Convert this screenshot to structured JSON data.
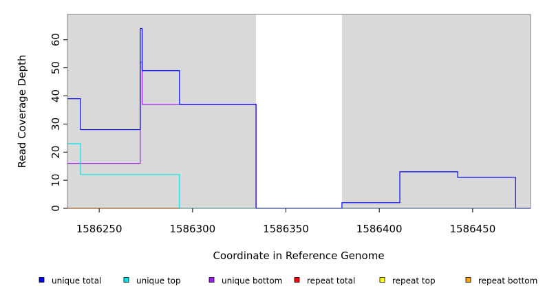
{
  "chart_data": {
    "type": "line",
    "step": true,
    "xlabel": "Coordinate in Reference Genome",
    "ylabel": "Read Coverage Depth",
    "xlim": [
      1586233,
      1586481
    ],
    "ylim": [
      0,
      69
    ],
    "x_ticks": [
      1586250,
      1586300,
      1586350,
      1586400,
      1586450
    ],
    "y_ticks": [
      0,
      10,
      20,
      30,
      40,
      50,
      60
    ],
    "background_color": "#d9d9d9",
    "uncovered_regions": [
      [
        1586334,
        1586380
      ]
    ],
    "grid": false,
    "legend_position": "bottom",
    "series": [
      {
        "name": "unique total",
        "color": "#0000ff",
        "points": [
          [
            1586233,
            39
          ],
          [
            1586240,
            39
          ],
          [
            1586240,
            28
          ],
          [
            1586272,
            28
          ],
          [
            1586272,
            64
          ],
          [
            1586273,
            64
          ],
          [
            1586273,
            49
          ],
          [
            1586293,
            49
          ],
          [
            1586293,
            37
          ],
          [
            1586334,
            37
          ],
          [
            1586334,
            0
          ],
          [
            1586380,
            0
          ],
          [
            1586380,
            2
          ],
          [
            1586411,
            2
          ],
          [
            1586411,
            13
          ],
          [
            1586442,
            13
          ],
          [
            1586442,
            11
          ],
          [
            1586473,
            11
          ],
          [
            1586473,
            0
          ],
          [
            1586481,
            0
          ]
        ]
      },
      {
        "name": "unique top",
        "color": "#00e5e5",
        "points": [
          [
            1586233,
            23
          ],
          [
            1586240,
            23
          ],
          [
            1586240,
            12
          ],
          [
            1586293,
            12
          ],
          [
            1586293,
            0
          ],
          [
            1586481,
            0
          ]
        ]
      },
      {
        "name": "unique bottom",
        "color": "#a020f0",
        "points": [
          [
            1586233,
            16
          ],
          [
            1586272,
            16
          ],
          [
            1586272,
            52
          ],
          [
            1586273,
            52
          ],
          [
            1586273,
            37
          ],
          [
            1586334,
            37
          ],
          [
            1586334,
            0
          ],
          [
            1586481,
            0
          ]
        ]
      },
      {
        "name": "repeat total",
        "color": "#ff0000",
        "points": [
          [
            1586233,
            0
          ],
          [
            1586293,
            0
          ]
        ]
      },
      {
        "name": "repeat top",
        "color": "#ffff00",
        "points": [
          [
            1586233,
            0
          ],
          [
            1586293,
            0
          ]
        ]
      },
      {
        "name": "repeat bottom",
        "color": "#ffa500",
        "points": [
          [
            1586233,
            0
          ],
          [
            1586293,
            0
          ]
        ]
      }
    ]
  }
}
